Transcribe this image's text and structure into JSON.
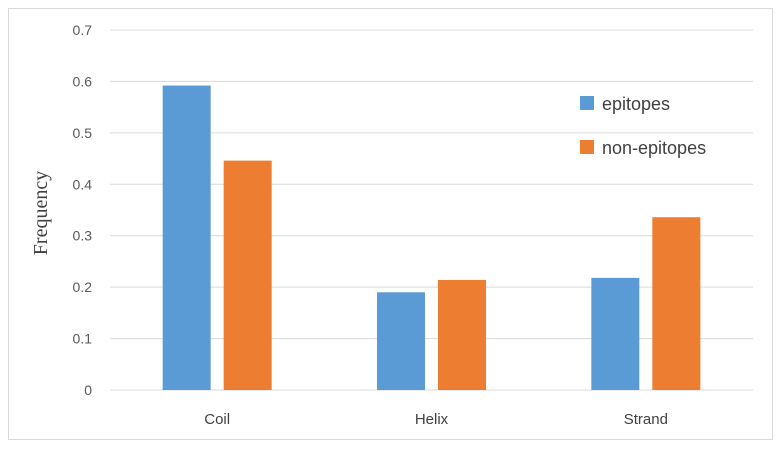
{
  "chart_data": {
    "type": "bar",
    "categories": [
      "Coil",
      "Helix",
      "Strand"
    ],
    "series": [
      {
        "name": "epitopes",
        "color": "#5b9bd5",
        "values": [
          0.592,
          0.19,
          0.218
        ]
      },
      {
        "name": "non-epitopes",
        "color": "#ed7d31",
        "values": [
          0.446,
          0.214,
          0.336
        ]
      }
    ],
    "title": "",
    "xlabel": "",
    "ylabel": "Frequency",
    "ylim": [
      0,
      0.7
    ],
    "yticks": [
      "0",
      "0.1",
      "0.2",
      "0.3",
      "0.4",
      "0.5",
      "0.6",
      "0.7"
    ],
    "grid": true,
    "legend_position": "right"
  }
}
